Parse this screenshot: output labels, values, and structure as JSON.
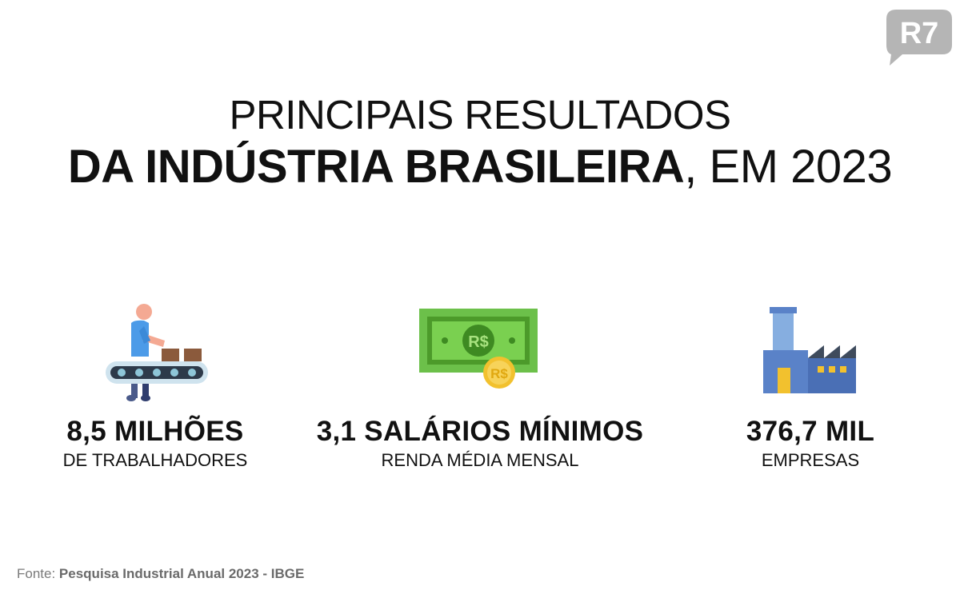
{
  "brand": {
    "logo_text": "R7",
    "logo_color": "#b5b5b5"
  },
  "title": {
    "line1": "PRINCIPAIS RESULTADOS",
    "line2_bold": "DA INDÚSTRIA BRASILEIRA",
    "line2_rest": ", EM 2023"
  },
  "stats": [
    {
      "icon": "worker-conveyor-icon",
      "value": "8,5 MILHÕES",
      "label": "DE TRABALHADORES"
    },
    {
      "icon": "money-bill-icon",
      "value": "3,1 SALÁRIOS MÍNIMOS",
      "label": "RENDA MÉDIA MENSAL"
    },
    {
      "icon": "factory-icon",
      "value": "376,7 MIL",
      "label": "EMPRESAS"
    }
  ],
  "money_icon": {
    "bill_symbol": "R$",
    "coin_symbol": "R$"
  },
  "footer": {
    "prefix": "Fonte: ",
    "source": "Pesquisa Industrial Anual 2023 - IBGE"
  },
  "colors": {
    "bill_green": "#6cc04a",
    "coin_gold": "#f2c12e",
    "factory_blue": "#4a6fb5",
    "worker_blue": "#4c9be8"
  }
}
